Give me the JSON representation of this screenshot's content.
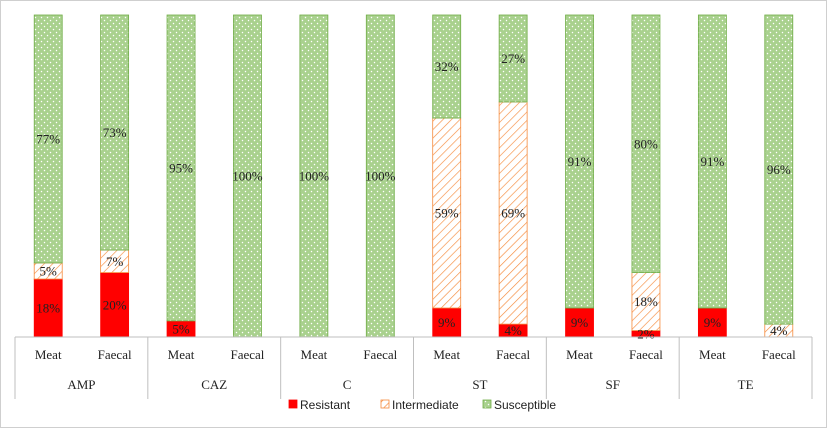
{
  "chart_data": {
    "type": "bar",
    "stacked": true,
    "groups": [
      {
        "name": "AMP",
        "categories": [
          "Meat",
          "Faecal"
        ]
      },
      {
        "name": "CAZ",
        "categories": [
          "Meat",
          "Faecal"
        ]
      },
      {
        "name": "C",
        "categories": [
          "Meat",
          "Faecal"
        ]
      },
      {
        "name": "ST",
        "categories": [
          "Meat",
          "Faecal"
        ]
      },
      {
        "name": "SF",
        "categories": [
          "Meat",
          "Faecal"
        ]
      },
      {
        "name": "TE",
        "categories": [
          "Meat",
          "Faecal"
        ]
      }
    ],
    "series": [
      {
        "name": "Resistant",
        "color": "#ff0000",
        "values": [
          18,
          20,
          5,
          0,
          0,
          0,
          9,
          4,
          9,
          2,
          9,
          0
        ],
        "labels": [
          "18%",
          "20%",
          "5%",
          "",
          "",
          "",
          "9%",
          "4%",
          "9%",
          "2%",
          "9%",
          ""
        ]
      },
      {
        "name": "Intermediate",
        "color": "#f58b3c",
        "values": [
          5,
          7,
          0,
          0,
          0,
          0,
          59,
          69,
          0,
          18,
          0,
          4
        ],
        "labels": [
          "5%",
          "7%",
          "",
          "",
          "",
          "",
          "59%",
          "69%",
          "",
          "18%",
          "",
          "4%"
        ]
      },
      {
        "name": "Susceptible",
        "color": "#a9d18e",
        "values": [
          77,
          73,
          95,
          100,
          100,
          100,
          32,
          27,
          91,
          80,
          91,
          96
        ],
        "labels": [
          "77%",
          "73%",
          "95%",
          "100%",
          "100%",
          "100%",
          "32%",
          "27%",
          "91%",
          "80%",
          "91%",
          "96%"
        ]
      }
    ],
    "ylim": [
      0,
      100
    ],
    "legend_position": "bottom",
    "grid": false
  }
}
